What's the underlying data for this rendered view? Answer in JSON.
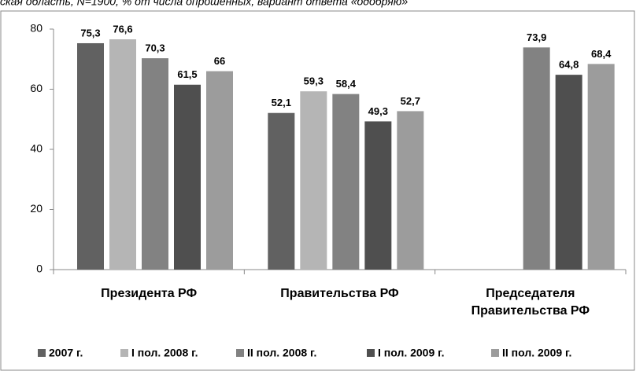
{
  "chart_data": {
    "type": "bar",
    "subtitle": "ская область, N=1900, % от числа опрошенных, вариант ответа «одобряю»",
    "categories": [
      "Президента РФ",
      "Правительства РФ",
      "Председателя Правительства РФ"
    ],
    "series": [
      {
        "name": "2007 г.",
        "color": "#616161",
        "values": [
          75.3,
          52.1,
          null
        ],
        "value_labels": [
          "75,3",
          "52,1",
          null
        ]
      },
      {
        "name": "I пол. 2008 г.",
        "color": "#b5b5b5",
        "values": [
          76.6,
          59.3,
          null
        ],
        "value_labels": [
          "76,6",
          "59,3",
          null
        ]
      },
      {
        "name": "II пол. 2008 г.",
        "color": "#828282",
        "values": [
          70.3,
          58.4,
          73.9
        ],
        "value_labels": [
          "70,3",
          "58,4",
          "73,9"
        ]
      },
      {
        "name": "I пол. 2009 г.",
        "color": "#4f4f4f",
        "values": [
          61.5,
          49.3,
          64.8
        ],
        "value_labels": [
          "61,5",
          "49,3",
          "64,8"
        ]
      },
      {
        "name": "II пол. 2009 г.",
        "color": "#9c9c9c",
        "values": [
          66,
          52.7,
          68.4
        ],
        "value_labels": [
          "66",
          "52,7",
          "68,4"
        ]
      }
    ],
    "ylim": [
      0,
      80
    ],
    "yticks": [
      0,
      20,
      40,
      60,
      80
    ],
    "grid": false
  }
}
